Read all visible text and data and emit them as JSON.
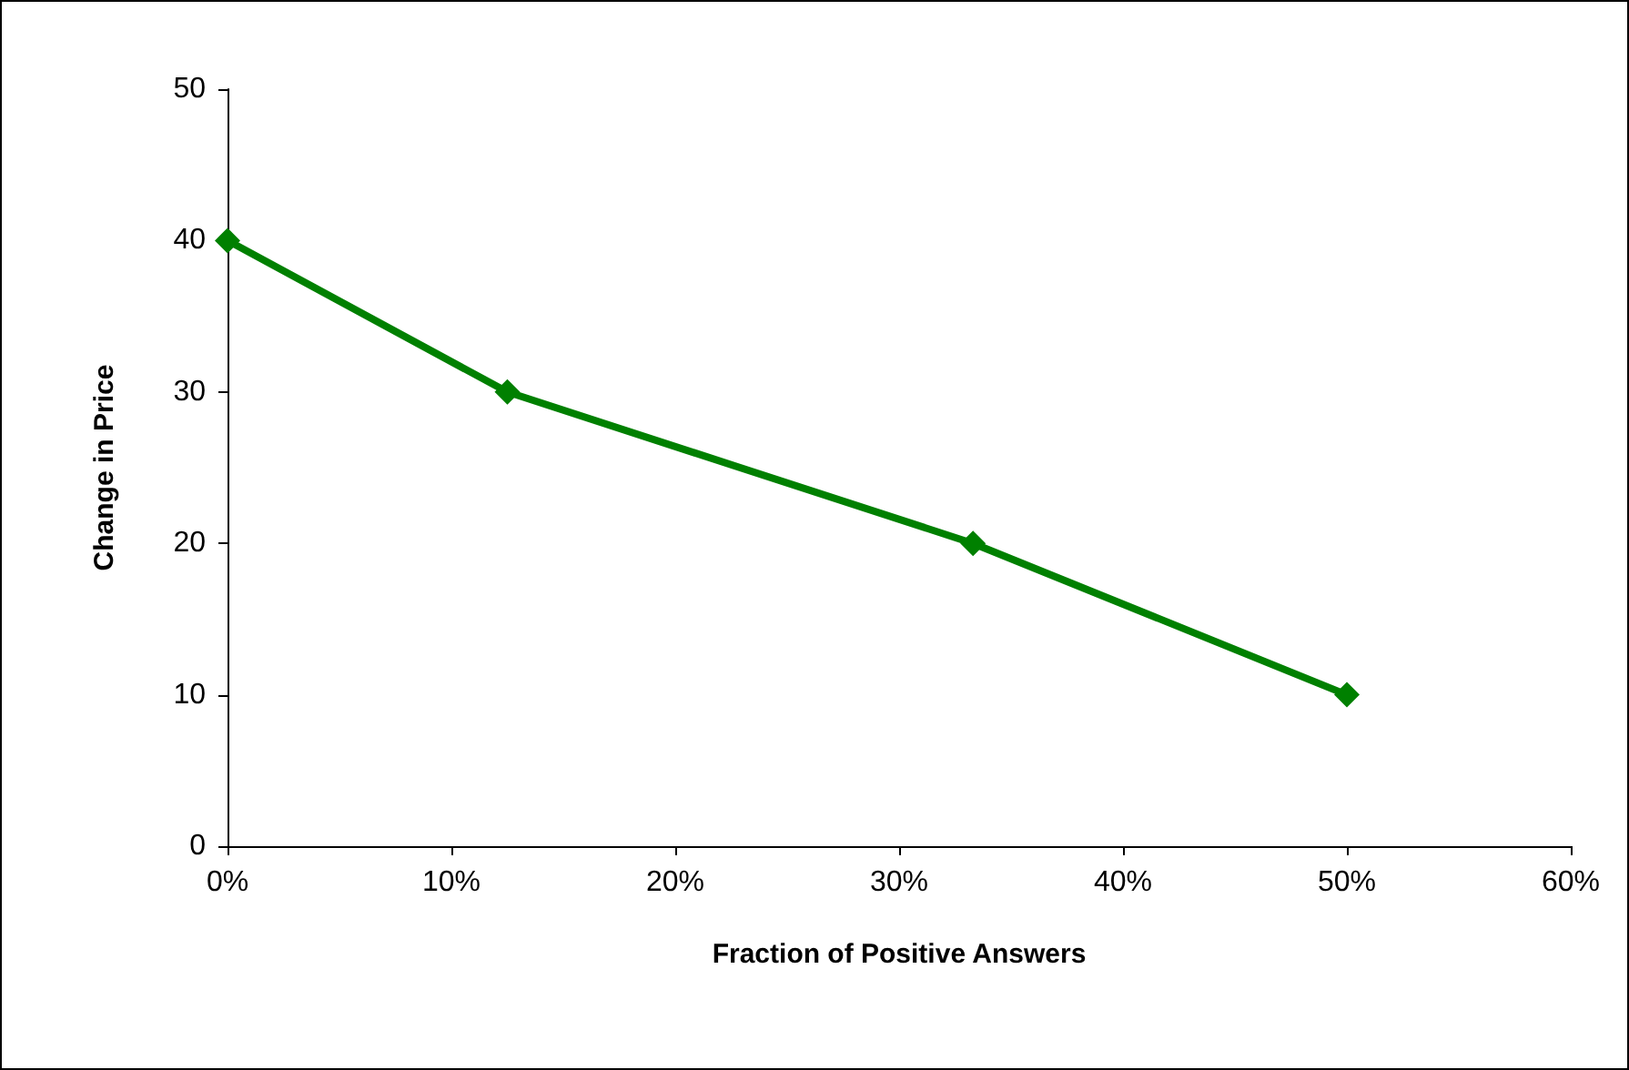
{
  "chart_data": {
    "type": "line",
    "xlabel": "Fraction of Positive Answers",
    "ylabel": "Change in Price",
    "x": [
      0,
      12.5,
      33.3,
      50
    ],
    "series": [
      {
        "color": "#008000",
        "values": [
          40,
          30,
          20,
          10
        ]
      }
    ],
    "xlim": [
      0,
      60
    ],
    "xticks": [
      {
        "value": 0,
        "label": "0%"
      },
      {
        "value": 10,
        "label": "10%"
      },
      {
        "value": 20,
        "label": "20%"
      },
      {
        "value": 30,
        "label": "30%"
      },
      {
        "value": 40,
        "label": "40%"
      },
      {
        "value": 50,
        "label": "50%"
      },
      {
        "value": 60,
        "label": "60%"
      }
    ],
    "ylim": [
      0,
      50
    ],
    "yticks": [
      0,
      10,
      20,
      30,
      40,
      50
    ],
    "marker": "diamond",
    "line_style": "solid"
  }
}
